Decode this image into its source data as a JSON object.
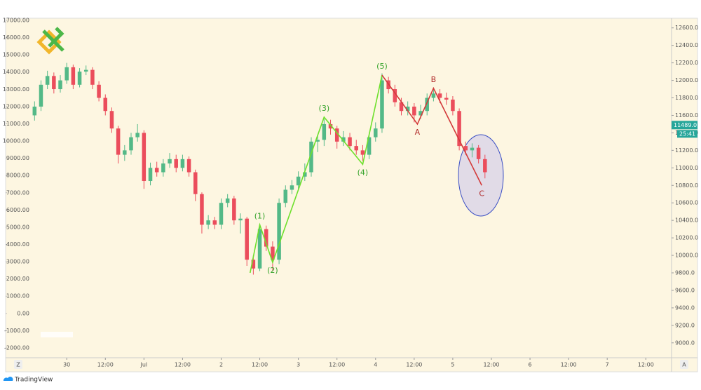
{
  "chart_data": {
    "type": "candlestick",
    "up_color": "#53b987",
    "down_color": "#eb4d5c",
    "xlim": [
      -19,
      188
    ],
    "xticks": [
      {
        "value": 0,
        "label": "30"
      },
      {
        "value": 12,
        "label": "12:00"
      },
      {
        "value": 24,
        "label": "Jul"
      },
      {
        "value": 36,
        "label": "12:00"
      },
      {
        "value": 48,
        "label": "2"
      },
      {
        "value": 60,
        "label": "12:00"
      },
      {
        "value": 72,
        "label": "3"
      },
      {
        "value": 84,
        "label": "12:00"
      },
      {
        "value": 96,
        "label": "4"
      },
      {
        "value": 108,
        "label": "12:00"
      },
      {
        "value": 120,
        "label": "5"
      },
      {
        "value": 132,
        "label": "12:00"
      },
      {
        "value": 144,
        "label": "6"
      },
      {
        "value": 156,
        "label": "12:00"
      },
      {
        "value": 168,
        "label": "7"
      },
      {
        "value": 180,
        "label": "12:00"
      }
    ],
    "ylim": [
      -2570,
      17120
    ],
    "yticks": [
      {
        "value": 17000,
        "label": "17000.00"
      },
      {
        "value": 16000,
        "label": "16000.00"
      },
      {
        "value": 15000,
        "label": "15000.00"
      },
      {
        "value": 14000,
        "label": "14000.00"
      },
      {
        "value": 13000,
        "label": "13000.00"
      },
      {
        "value": 12000,
        "label": "12000.00"
      },
      {
        "value": 11000,
        "label": "11000.00"
      },
      {
        "value": 10000,
        "label": "10000.00"
      },
      {
        "value": 9000,
        "label": "9000.00"
      },
      {
        "value": 8000,
        "label": "8000.00"
      },
      {
        "value": 7000,
        "label": "7000.00"
      },
      {
        "value": 6000,
        "label": "6000.00"
      },
      {
        "value": 5000,
        "label": "5000.00"
      },
      {
        "value": 4000,
        "label": "4000.00"
      },
      {
        "value": 3000,
        "label": "3000.00"
      },
      {
        "value": 2000,
        "label": "2000.00"
      },
      {
        "value": 1000,
        "label": "1000.00"
      },
      {
        "value": 0,
        "label": "0.00"
      },
      {
        "value": -1000,
        "label": "-1000.00"
      },
      {
        "value": -2000,
        "label": "-2000.00"
      }
    ],
    "y2lim": [
      8830,
      12710
    ],
    "y2ticks": [
      {
        "value": 12600,
        "label": "12600.0"
      },
      {
        "value": 12400,
        "label": "12400.0"
      },
      {
        "value": 12200,
        "label": "12200.0"
      },
      {
        "value": 12000,
        "label": "12000.0"
      },
      {
        "value": 11800,
        "label": "11800.0"
      },
      {
        "value": 11600,
        "label": "11600.0"
      },
      {
        "value": 11400,
        "label": "11400.0"
      },
      {
        "value": 11200,
        "label": "11200.0"
      },
      {
        "value": 11000,
        "label": "11000.0"
      },
      {
        "value": 10800,
        "label": "10800.0"
      },
      {
        "value": 10600,
        "label": "10600.0"
      },
      {
        "value": 10400,
        "label": "10400.0"
      },
      {
        "value": 10200,
        "label": "10200.0"
      },
      {
        "value": 10000,
        "label": "10000.0"
      },
      {
        "value": 9800,
        "label": "9800.0"
      },
      {
        "value": 9600,
        "label": "9600.0"
      },
      {
        "value": 9400,
        "label": "9400.0"
      },
      {
        "value": 9200,
        "label": "9200.0"
      },
      {
        "value": 9000,
        "label": "9000.0"
      }
    ],
    "x": [
      -10,
      -8,
      -6,
      -4,
      -2,
      0,
      2,
      4,
      6,
      8,
      10,
      12,
      14,
      16,
      18,
      20,
      22,
      24,
      26,
      28,
      30,
      32,
      34,
      36,
      38,
      40,
      42,
      44,
      46,
      48,
      50,
      52,
      54,
      56,
      58,
      60,
      62,
      64,
      66,
      68,
      70,
      72,
      74,
      76,
      78,
      80,
      82,
      84,
      86,
      88,
      90,
      92,
      94,
      96,
      98,
      100,
      102,
      104,
      106,
      108,
      110,
      112,
      114,
      116,
      118,
      120,
      122,
      124,
      126,
      128,
      130
    ],
    "series": [
      {
        "axis": "y2",
        "open": [
          11600,
          11700,
          11950,
          12050,
          11900,
          12000,
          12150,
          11950,
          12100,
          12120,
          11950,
          11800,
          11650,
          11450,
          11150,
          11200,
          11350,
          11400,
          10850,
          11000,
          10950,
          11050,
          11100,
          11000,
          11100,
          10950,
          10700,
          10350,
          10400,
          10350,
          10600,
          10650,
          10400,
          10420,
          9950,
          9850,
          10300,
          10100,
          9950,
          10600,
          10750,
          10800,
          10900,
          10950,
          11300,
          11320,
          11500,
          11450,
          11300,
          11350,
          11250,
          11200,
          11150,
          11350,
          11450,
          12000,
          11900,
          11750,
          11650,
          11700,
          11600,
          11650,
          11800,
          11850,
          11800,
          11780,
          11650,
          11250,
          11200,
          11230,
          11100
        ],
        "high": [
          11760,
          12000,
          12110,
          12090,
          12060,
          12200,
          12180,
          12140,
          12170,
          12150,
          11990,
          11840,
          11690,
          11480,
          11260,
          11400,
          11500,
          11430,
          11060,
          11070,
          11100,
          11170,
          11150,
          11150,
          11130,
          10980,
          10720,
          10460,
          10440,
          10650,
          10700,
          10680,
          10480,
          10440,
          10000,
          10360,
          10340,
          10160,
          10650,
          10800,
          10860,
          10960,
          11050,
          11350,
          11380,
          11560,
          11550,
          11480,
          11420,
          11400,
          11320,
          11260,
          11400,
          11520,
          12080,
          12040,
          11950,
          11800,
          11760,
          11740,
          11720,
          11850,
          11920,
          11900,
          11860,
          11820,
          11680,
          11300,
          11280,
          11260,
          11150
        ],
        "low": [
          11540,
          11650,
          11900,
          11850,
          11860,
          11960,
          11900,
          11920,
          12060,
          11900,
          11760,
          11600,
          11400,
          11050,
          11080,
          11150,
          11300,
          10760,
          10800,
          10900,
          10900,
          11000,
          10950,
          10960,
          10900,
          10620,
          10250,
          10300,
          10300,
          10300,
          10550,
          10350,
          10250,
          9880,
          9780,
          9820,
          10050,
          9820,
          9900,
          10550,
          10700,
          10760,
          10850,
          10900,
          11180,
          11250,
          11380,
          11220,
          11250,
          11200,
          11150,
          11080,
          11100,
          11300,
          11400,
          11850,
          11700,
          11600,
          11600,
          11520,
          11560,
          11600,
          11760,
          11740,
          11720,
          11600,
          11200,
          11150,
          11120,
          11050,
          10880
        ],
        "close": [
          11700,
          11950,
          12050,
          11900,
          12000,
          12150,
          11950,
          12100,
          12120,
          11950,
          11800,
          11650,
          11450,
          11150,
          11200,
          11350,
          11400,
          10850,
          11000,
          10950,
          11050,
          11100,
          11000,
          11100,
          10950,
          10700,
          10350,
          10400,
          10350,
          10600,
          10650,
          10400,
          10420,
          9950,
          9850,
          10300,
          10100,
          9950,
          10600,
          10750,
          10800,
          10900,
          10950,
          11300,
          11320,
          11500,
          11450,
          11300,
          11350,
          11250,
          11200,
          11150,
          11350,
          11450,
          12000,
          11900,
          11750,
          11650,
          11700,
          11600,
          11650,
          11800,
          11850,
          11800,
          11780,
          11650,
          11250,
          11200,
          11230,
          11100,
          10950
        ]
      }
    ],
    "waves": [
      {
        "color": "#6ee02c",
        "label_color": "#36a32b",
        "points": [
          {
            "x": 57,
            "y": 9800
          },
          {
            "x": 60,
            "y": 10350,
            "label": "(1)"
          },
          {
            "x": 64,
            "y": 9920,
            "label": "(2)"
          },
          {
            "x": 80,
            "y": 11580,
            "label": "(3)"
          },
          {
            "x": 92,
            "y": 11040,
            "label": "(4)"
          },
          {
            "x": 98,
            "y": 12060,
            "label": "(5)"
          }
        ]
      },
      {
        "color": "#d33a3a",
        "label_color": "#b02a2a",
        "points": [
          {
            "x": 98,
            "y": 12060
          },
          {
            "x": 109,
            "y": 11500,
            "label": "A"
          },
          {
            "x": 114,
            "y": 11910,
            "label": "B"
          },
          {
            "x": 129,
            "y": 10800,
            "label": "C"
          }
        ]
      }
    ],
    "last_price": {
      "value": 11489,
      "label": "11489.0"
    },
    "countdown": "25:41",
    "scale_buttons": [
      "Z",
      "A"
    ]
  },
  "footer": {
    "brand": "TradingView"
  }
}
